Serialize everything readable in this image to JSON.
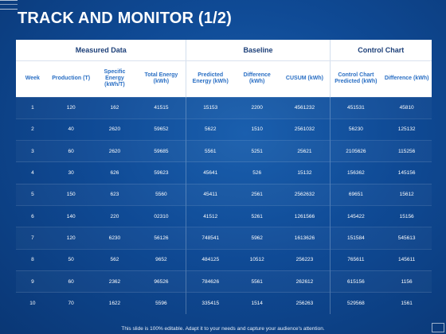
{
  "title": "TRACK AND MONITOR (1/2)",
  "groups": [
    "Measured Data",
    "Baseline",
    "Control Chart"
  ],
  "columns": [
    "Week",
    "Production (T)",
    "Specific Energy (kWh/T)",
    "Total Energy (kWh)",
    "Predicted Energy (kWh)",
    "Difference (kWh)",
    "CUSUM (kWh)",
    "Control Chart Predicted (kWh)",
    "Difference (kWh)"
  ],
  "rows": [
    [
      "1",
      "120",
      "162",
      "41515",
      "15153",
      "2200",
      "4561232",
      "451531",
      "45810"
    ],
    [
      "2",
      "40",
      "2620",
      "59652",
      "5622",
      "1510",
      "2561032",
      "56230",
      "125132"
    ],
    [
      "3",
      "60",
      "2620",
      "59685",
      "5561",
      "5251",
      "25621",
      "2105626",
      "115256"
    ],
    [
      "4",
      "30",
      "626",
      "59623",
      "45641",
      "526",
      "15132",
      "156362",
      "145156"
    ],
    [
      "5",
      "150",
      "623",
      "5560",
      "45411",
      "2561",
      "2562632",
      "69651",
      "15612"
    ],
    [
      "6",
      "140",
      "220",
      "02310",
      "41512",
      "5261",
      "1261566",
      "145422",
      "15156"
    ],
    [
      "7",
      "120",
      "6230",
      "56126",
      "748541",
      "5962",
      "1613626",
      "151584",
      "545613"
    ],
    [
      "8",
      "50",
      "562",
      "9652",
      "484125",
      "10512",
      "256223",
      "765611",
      "145611"
    ],
    [
      "9",
      "60",
      "2362",
      "96526",
      "784626",
      "5561",
      "262612",
      "615156",
      "1156"
    ],
    [
      "10",
      "70",
      "1622",
      "5596",
      "335415",
      "1514",
      "256263",
      "529568",
      "1561"
    ]
  ],
  "footer": "This slide is 100% editable. Adapt it to your needs and capture your audience's attention.",
  "colors": {
    "background": "#0f4a95",
    "header_bg": "#ffffff",
    "group_text": "#1c3f78",
    "column_text": "#2a6fc4",
    "cell_text": "#ffffff"
  }
}
